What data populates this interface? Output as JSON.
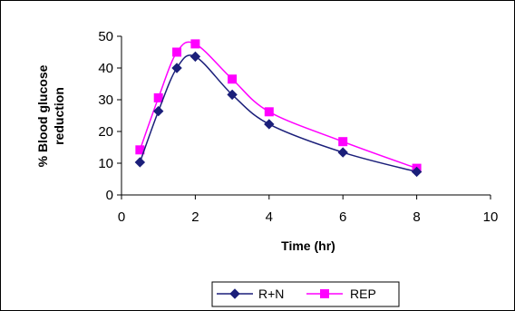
{
  "chart_data": {
    "type": "line",
    "title": "",
    "xlabel": "Time (hr)",
    "ylabel": [
      "% Blood glucose",
      "reduction"
    ],
    "xlim": [
      0,
      10
    ],
    "ylim": [
      0,
      50
    ],
    "xticks": [
      "0",
      "2",
      "4",
      "6",
      "8",
      "10"
    ],
    "yticks": [
      "0",
      "10",
      "20",
      "30",
      "40",
      "50"
    ],
    "grid": false,
    "legend_position": "bottom",
    "x": [
      0.5,
      1,
      1.5,
      2,
      3,
      4,
      6,
      8
    ],
    "series": [
      {
        "name": "R+N",
        "values": [
          10.3,
          26.4,
          40.0,
          43.6,
          31.6,
          22.3,
          13.4,
          7.3
        ],
        "color": "#1b1f7a",
        "marker": "diamond"
      },
      {
        "name": "REP",
        "values": [
          14.2,
          30.6,
          45.0,
          47.6,
          36.5,
          26.2,
          16.8,
          8.4
        ],
        "color": "#ff00ff",
        "marker": "square"
      }
    ]
  }
}
